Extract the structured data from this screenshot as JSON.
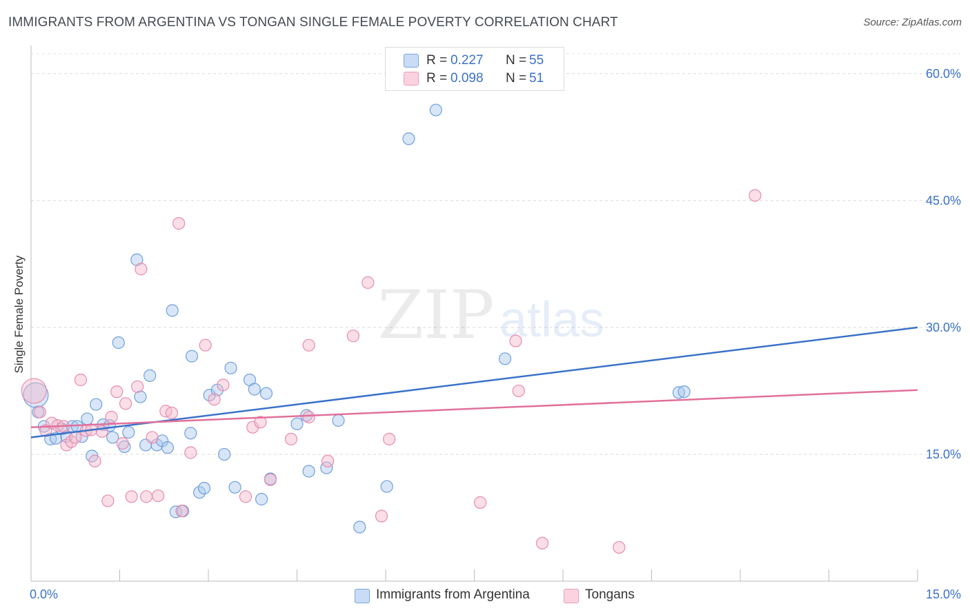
{
  "title": "IMMIGRANTS FROM ARGENTINA VS TONGAN SINGLE FEMALE POVERTY CORRELATION CHART",
  "source": "Source: ZipAtlas.com",
  "watermark": {
    "zip": "ZIP",
    "atlas": "atlas"
  },
  "legend": {
    "rows": [
      {
        "r_label": "R =",
        "r_value": "0.227",
        "n_label": "N =",
        "n_value": "55",
        "color": "#a9c8f0"
      },
      {
        "r_label": "R =",
        "r_value": "0.098",
        "n_label": "N =",
        "n_value": "51",
        "color": "#f5b8cc"
      }
    ]
  },
  "bottom_legend": [
    "Immigrants from Argentina",
    "Tongans"
  ],
  "colors": {
    "blue": "#3a72c8",
    "blue_fill": "#a9c8f0",
    "pink": "#e0709a",
    "pink_fill": "#f5b8cc",
    "tick_text": "#3a72c8"
  },
  "chart_data": {
    "type": "scatter",
    "title": "IMMIGRANTS FROM ARGENTINA VS TONGAN SINGLE FEMALE POVERTY CORRELATION CHART",
    "xlabel": "",
    "ylabel": "Single Female Poverty",
    "xlim": [
      0,
      15
    ],
    "ylim": [
      0,
      63
    ],
    "x_tick_labels": [
      "0.0%",
      "15.0%"
    ],
    "y_ticks": [
      15,
      30,
      45,
      60
    ],
    "y_tick_labels": [
      "15.0%",
      "30.0%",
      "45.0%",
      "60.0%"
    ],
    "grid": true,
    "legend_position": "top-center",
    "series": [
      {
        "name": "Immigrants from Argentina",
        "r": 0.227,
        "n": 55,
        "trend": {
          "x": [
            0,
            15
          ],
          "y": [
            17.0,
            30.0
          ]
        },
        "points": [
          {
            "x": 0.08,
            "y": 22.0,
            "big": true
          },
          {
            "x": 0.12,
            "y": 20.0
          },
          {
            "x": 0.22,
            "y": 18.3
          },
          {
            "x": 0.33,
            "y": 16.8
          },
          {
            "x": 0.42,
            "y": 16.9
          },
          {
            "x": 0.52,
            "y": 18.0
          },
          {
            "x": 0.6,
            "y": 17.1
          },
          {
            "x": 0.7,
            "y": 18.3
          },
          {
            "x": 0.78,
            "y": 18.3
          },
          {
            "x": 0.86,
            "y": 17.1
          },
          {
            "x": 0.95,
            "y": 19.2
          },
          {
            "x": 1.03,
            "y": 14.8
          },
          {
            "x": 1.1,
            "y": 20.9
          },
          {
            "x": 1.22,
            "y": 18.5
          },
          {
            "x": 1.33,
            "y": 18.4
          },
          {
            "x": 1.38,
            "y": 17.0
          },
          {
            "x": 1.48,
            "y": 28.2
          },
          {
            "x": 1.58,
            "y": 15.9
          },
          {
            "x": 1.65,
            "y": 17.6
          },
          {
            "x": 1.79,
            "y": 38.0
          },
          {
            "x": 1.85,
            "y": 21.8
          },
          {
            "x": 1.94,
            "y": 16.1
          },
          {
            "x": 2.01,
            "y": 24.3
          },
          {
            "x": 2.13,
            "y": 16.1
          },
          {
            "x": 2.22,
            "y": 16.6
          },
          {
            "x": 2.31,
            "y": 15.8
          },
          {
            "x": 2.39,
            "y": 32.0
          },
          {
            "x": 2.45,
            "y": 8.2
          },
          {
            "x": 2.57,
            "y": 8.3
          },
          {
            "x": 2.7,
            "y": 17.5
          },
          {
            "x": 2.72,
            "y": 26.6
          },
          {
            "x": 2.85,
            "y": 10.5
          },
          {
            "x": 2.93,
            "y": 11.0
          },
          {
            "x": 3.02,
            "y": 22.0
          },
          {
            "x": 3.15,
            "y": 22.6
          },
          {
            "x": 3.27,
            "y": 15.0
          },
          {
            "x": 3.38,
            "y": 25.2
          },
          {
            "x": 3.45,
            "y": 11.1
          },
          {
            "x": 3.7,
            "y": 23.8
          },
          {
            "x": 3.78,
            "y": 22.7
          },
          {
            "x": 3.9,
            "y": 9.7
          },
          {
            "x": 3.98,
            "y": 22.2
          },
          {
            "x": 4.05,
            "y": 12.1
          },
          {
            "x": 4.5,
            "y": 18.6
          },
          {
            "x": 4.66,
            "y": 19.6
          },
          {
            "x": 4.7,
            "y": 13.0
          },
          {
            "x": 5.0,
            "y": 13.4
          },
          {
            "x": 5.2,
            "y": 19.0
          },
          {
            "x": 5.56,
            "y": 6.4
          },
          {
            "x": 6.02,
            "y": 11.2
          },
          {
            "x": 6.39,
            "y": 52.3
          },
          {
            "x": 6.85,
            "y": 55.7
          },
          {
            "x": 8.02,
            "y": 26.3
          },
          {
            "x": 10.96,
            "y": 22.3
          },
          {
            "x": 11.05,
            "y": 22.4
          }
        ]
      },
      {
        "name": "Tongans",
        "r": 0.098,
        "n": 51,
        "trend": {
          "x": [
            0,
            15
          ],
          "y": [
            18.2,
            22.6
          ]
        },
        "points": [
          {
            "x": 0.05,
            "y": 22.5,
            "big": true
          },
          {
            "x": 0.15,
            "y": 20.0
          },
          {
            "x": 0.25,
            "y": 17.8
          },
          {
            "x": 0.35,
            "y": 18.7
          },
          {
            "x": 0.45,
            "y": 18.4
          },
          {
            "x": 0.55,
            "y": 18.3
          },
          {
            "x": 0.6,
            "y": 16.1
          },
          {
            "x": 0.68,
            "y": 16.5
          },
          {
            "x": 0.75,
            "y": 17.0
          },
          {
            "x": 0.84,
            "y": 23.8
          },
          {
            "x": 0.93,
            "y": 17.8
          },
          {
            "x": 1.02,
            "y": 17.9
          },
          {
            "x": 1.08,
            "y": 14.2
          },
          {
            "x": 1.2,
            "y": 17.7
          },
          {
            "x": 1.3,
            "y": 9.5
          },
          {
            "x": 1.36,
            "y": 19.4
          },
          {
            "x": 1.45,
            "y": 22.4
          },
          {
            "x": 1.55,
            "y": 16.3
          },
          {
            "x": 1.6,
            "y": 21.0
          },
          {
            "x": 1.7,
            "y": 10.0
          },
          {
            "x": 1.8,
            "y": 23.0
          },
          {
            "x": 1.86,
            "y": 36.9
          },
          {
            "x": 1.95,
            "y": 10.0
          },
          {
            "x": 2.05,
            "y": 17.0
          },
          {
            "x": 2.15,
            "y": 10.1
          },
          {
            "x": 2.28,
            "y": 20.1
          },
          {
            "x": 2.38,
            "y": 19.9
          },
          {
            "x": 2.5,
            "y": 42.3
          },
          {
            "x": 2.55,
            "y": 8.3
          },
          {
            "x": 2.7,
            "y": 15.2
          },
          {
            "x": 2.95,
            "y": 27.9
          },
          {
            "x": 3.1,
            "y": 21.5
          },
          {
            "x": 3.25,
            "y": 23.2
          },
          {
            "x": 3.63,
            "y": 10.0
          },
          {
            "x": 3.75,
            "y": 18.2
          },
          {
            "x": 3.88,
            "y": 18.8
          },
          {
            "x": 4.05,
            "y": 12.0
          },
          {
            "x": 4.4,
            "y": 16.8
          },
          {
            "x": 4.7,
            "y": 19.4
          },
          {
            "x": 4.7,
            "y": 27.9
          },
          {
            "x": 5.02,
            "y": 14.2
          },
          {
            "x": 5.45,
            "y": 29.0
          },
          {
            "x": 5.7,
            "y": 35.3
          },
          {
            "x": 5.93,
            "y": 7.7
          },
          {
            "x": 6.06,
            "y": 16.8
          },
          {
            "x": 7.6,
            "y": 9.3
          },
          {
            "x": 8.2,
            "y": 28.4
          },
          {
            "x": 8.25,
            "y": 22.5
          },
          {
            "x": 8.65,
            "y": 4.5
          },
          {
            "x": 9.95,
            "y": 4.0
          },
          {
            "x": 12.25,
            "y": 45.6
          }
        ]
      }
    ]
  }
}
